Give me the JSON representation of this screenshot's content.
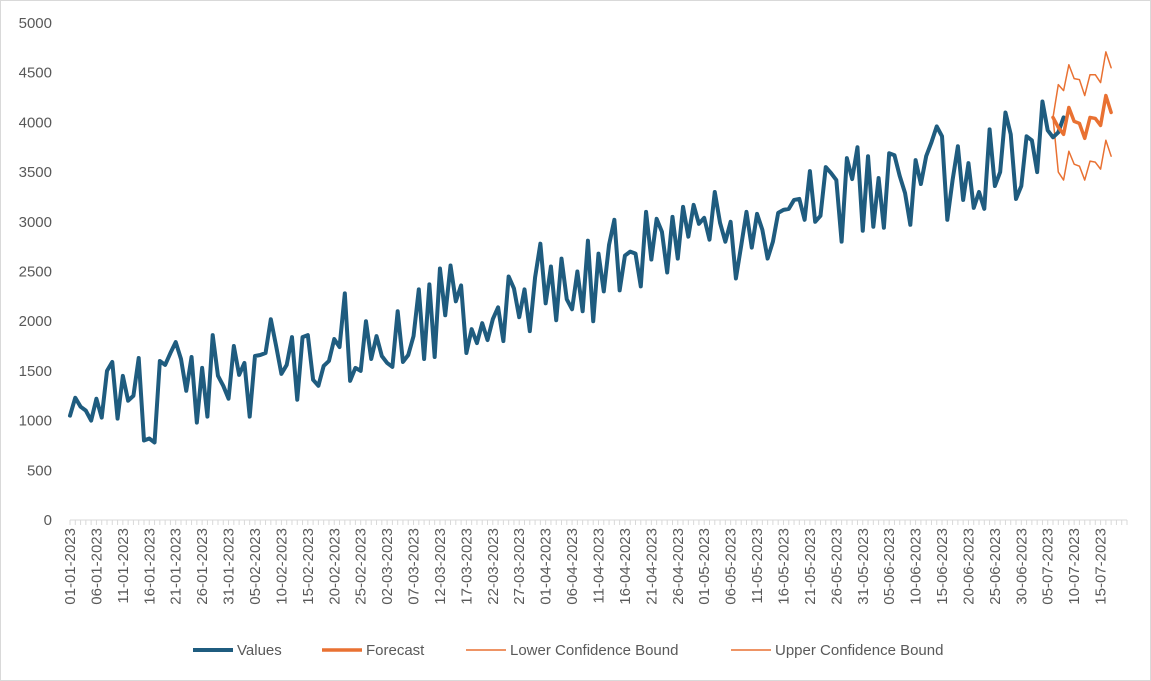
{
  "chart_data": {
    "type": "line",
    "ylim": [
      0,
      5000
    ],
    "yticks": [
      0,
      500,
      1000,
      1500,
      2000,
      2500,
      3000,
      3500,
      4000,
      4500,
      5000
    ],
    "x_tick_labels": [
      "01-01-2023",
      "06-01-2023",
      "11-01-2023",
      "16-01-2023",
      "21-01-2023",
      "26-01-2023",
      "31-01-2023",
      "05-02-2023",
      "10-02-2023",
      "15-02-2023",
      "20-02-2023",
      "25-02-2023",
      "02-03-2023",
      "07-03-2023",
      "12-03-2023",
      "17-03-2023",
      "22-03-2023",
      "27-03-2023",
      "01-04-2023",
      "06-04-2023",
      "11-04-2023",
      "16-04-2023",
      "21-04-2023",
      "26-04-2023",
      "01-05-2023",
      "06-05-2023",
      "11-05-2023",
      "16-05-2023",
      "21-05-2023",
      "26-05-2023",
      "31-05-2023",
      "05-06-2023",
      "10-06-2023",
      "15-06-2023",
      "20-06-2023",
      "25-06-2023",
      "30-06-2023",
      "05-07-2023",
      "10-07-2023",
      "15-07-2023"
    ],
    "x_start": "01-01-2023",
    "x_end": "20-07-2023",
    "legend_position": "bottom",
    "grid": false,
    "series": [
      {
        "name": "Values",
        "color": "#1f5c7f",
        "start": "01-01-2023",
        "values": [
          1050,
          1230,
          1140,
          1100,
          1000,
          1220,
          1030,
          1500,
          1590,
          1020,
          1450,
          1200,
          1250,
          1630,
          800,
          820,
          780,
          1600,
          1560,
          1680,
          1790,
          1620,
          1300,
          1640,
          980,
          1530,
          1040,
          1860,
          1450,
          1350,
          1220,
          1750,
          1460,
          1580,
          1040,
          1650,
          1660,
          1680,
          2020,
          1750,
          1470,
          1560,
          1840,
          1210,
          1840,
          1860,
          1410,
          1350,
          1550,
          1600,
          1820,
          1740,
          2280,
          1400,
          1530,
          1500,
          2000,
          1620,
          1850,
          1650,
          1580,
          1540,
          2100,
          1590,
          1660,
          1850,
          2320,
          1620,
          2370,
          1640,
          2530,
          2060,
          2560,
          2200,
          2360,
          1680,
          1920,
          1780,
          1980,
          1810,
          2020,
          2140,
          1800,
          2450,
          2330,
          2040,
          2320,
          1900,
          2440,
          2780,
          2180,
          2550,
          2010,
          2630,
          2220,
          2120,
          2500,
          2100,
          2810,
          2000,
          2680,
          2300,
          2770,
          3020,
          2310,
          2660,
          2700,
          2680,
          2350,
          3100,
          2620,
          3030,
          2900,
          2490,
          3050,
          2630,
          3150,
          2850,
          3170,
          2980,
          3040,
          2820,
          3300,
          2990,
          2800,
          3000,
          2430,
          2760,
          3100,
          2740,
          3080,
          2920,
          2630,
          2800,
          3090,
          3120,
          3130,
          3220,
          3230,
          3020,
          3510,
          3000,
          3060,
          3550,
          3490,
          3420,
          2800,
          3640,
          3430,
          3750,
          2910,
          3660,
          2950,
          3440,
          2940,
          3690,
          3670,
          3460,
          3290,
          2970,
          3620,
          3380,
          3660,
          3800,
          3960,
          3860,
          3020,
          3420,
          3760,
          3220,
          3590,
          3140,
          3300,
          3130,
          3930,
          3360,
          3500,
          4100,
          3880,
          3230,
          3360,
          3860,
          3820,
          3500,
          4210,
          3920,
          3850,
          3900,
          4050
        ]
      },
      {
        "name": "Forecast",
        "color": "#e97132",
        "start": "06-07-2023",
        "values": [
          4050,
          3950,
          3880,
          4150,
          4010,
          3990,
          3840,
          4050,
          4040,
          3970,
          4270,
          4100
        ]
      },
      {
        "name": "Lower Confidence Bound",
        "color": "#e97132",
        "start": "06-07-2023",
        "values": [
          4050,
          3500,
          3420,
          3710,
          3580,
          3560,
          3420,
          3610,
          3600,
          3530,
          3820,
          3660
        ]
      },
      {
        "name": "Upper Confidence Bound",
        "color": "#e97132",
        "start": "06-07-2023",
        "values": [
          4050,
          4380,
          4320,
          4580,
          4440,
          4430,
          4270,
          4480,
          4480,
          4400,
          4710,
          4550
        ]
      }
    ]
  }
}
